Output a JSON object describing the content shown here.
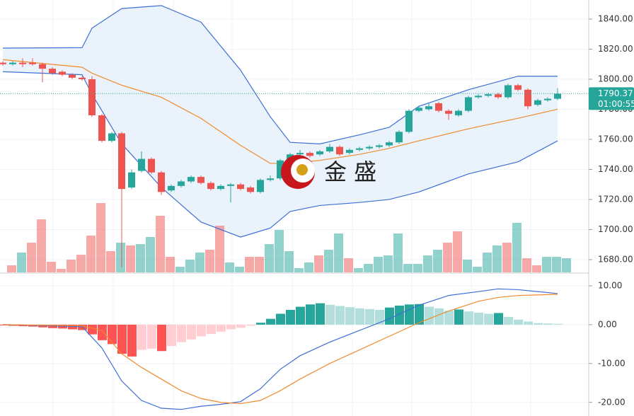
{
  "chart_data": {
    "type": "candlestick",
    "watermark": "金 盛",
    "ylim": [
      1671.5,
      1852.7
    ],
    "yticks": [
      {
        "value": 1840,
        "label": "1840.00"
      },
      {
        "value": 1820,
        "label": "1820.00"
      },
      {
        "value": 1800,
        "label": "1800.00"
      },
      {
        "value": 1780,
        "label": "1780.00"
      },
      {
        "value": 1760,
        "label": "1760.00"
      },
      {
        "value": 1740,
        "label": "1740.00"
      },
      {
        "value": 1720,
        "label": "1720.00"
      },
      {
        "value": 1700,
        "label": "1700.00"
      },
      {
        "value": 1680,
        "label": "1680.00"
      }
    ],
    "grid": true,
    "up_color": "#26a69a",
    "down_color": "#ef5350",
    "candles": {
      "open": [
        1811,
        1810,
        1811,
        1811,
        1810,
        1807,
        1805,
        1803,
        1801,
        1800,
        1776,
        1759,
        1764,
        1728,
        1739,
        1747,
        1738,
        1726,
        1729,
        1732,
        1735,
        1731,
        1727,
        1729,
        1730,
        1728,
        1725,
        1733,
        1734,
        1746,
        1750,
        1751,
        1750,
        1752,
        1755,
        1751,
        1753,
        1754,
        1755,
        1756,
        1758,
        1765,
        1779,
        1780,
        1784,
        1779,
        1776,
        1779,
        1788,
        1789,
        1790,
        1788,
        1796,
        1793,
        1783,
        1786,
        1787
      ],
      "close": [
        1810,
        1811,
        1810,
        1810,
        1807,
        1804,
        1803,
        1801,
        1800,
        1776,
        1759,
        1764,
        1727,
        1738,
        1747,
        1738,
        1725,
        1729,
        1732,
        1735,
        1731,
        1727,
        1729,
        1730,
        1727,
        1725,
        1733,
        1734,
        1746,
        1750,
        1751,
        1749,
        1752,
        1755,
        1750,
        1753,
        1754,
        1755,
        1756,
        1758,
        1765,
        1779,
        1781,
        1782,
        1779,
        1777,
        1779,
        1788,
        1789,
        1790,
        1788,
        1796,
        1793,
        1782,
        1786,
        1787,
        1790.37
      ],
      "high": [
        1812,
        1812,
        1814,
        1814,
        1811,
        1808,
        1806,
        1804,
        1802,
        1802,
        1777,
        1765,
        1765,
        1740,
        1752,
        1748,
        1739,
        1730,
        1733,
        1736,
        1736,
        1732,
        1730,
        1731,
        1731,
        1729,
        1734,
        1736,
        1747,
        1751,
        1753,
        1752,
        1753,
        1757,
        1756,
        1754,
        1755,
        1756,
        1757,
        1759,
        1766,
        1780,
        1782,
        1784,
        1785,
        1780,
        1780,
        1789,
        1790,
        1791,
        1791,
        1797,
        1797,
        1794,
        1787,
        1788,
        1794
      ],
      "low": [
        1809,
        1809,
        1808,
        1809,
        1798,
        1803,
        1802,
        1800,
        1799,
        1775,
        1758,
        1758,
        1675,
        1727,
        1738,
        1737,
        1723,
        1725,
        1728,
        1731,
        1730,
        1726,
        1726,
        1718,
        1726,
        1724,
        1724,
        1732,
        1733,
        1745,
        1749,
        1748,
        1749,
        1751,
        1749,
        1750,
        1752,
        1753,
        1754,
        1755,
        1757,
        1764,
        1778,
        1779,
        1778,
        1773,
        1775,
        1778,
        1787,
        1788,
        1787,
        1787,
        1792,
        1780,
        1782,
        1785,
        1786
      ]
    },
    "volume": {
      "opacity": 0.5,
      "values": [
        10,
        28,
        42,
        75,
        15,
        5,
        18,
        25,
        52,
        98,
        30,
        42,
        38,
        40,
        50,
        80,
        22,
        8,
        18,
        28,
        32,
        66,
        14,
        8,
        22,
        22,
        40,
        60,
        30,
        6,
        14,
        24,
        32,
        55,
        20,
        6,
        12,
        22,
        24,
        55,
        12,
        12,
        24,
        32,
        42,
        58,
        18,
        8,
        28,
        38,
        42,
        70,
        20,
        10,
        22,
        22,
        20
      ]
    },
    "bands": {
      "x": [
        0,
        8,
        9,
        12,
        16,
        20,
        24,
        27,
        29,
        32,
        36,
        39,
        42,
        47,
        52,
        56
      ],
      "fill": "#eaf3fb",
      "upper": {
        "color": "#3d6fd6",
        "values": [
          1820.7,
          1821,
          1834,
          1847,
          1849,
          1838,
          1806,
          1775,
          1758,
          1757,
          1763,
          1768,
          1782,
          1793,
          1802,
          1802
        ]
      },
      "middle": {
        "color": "#f08a2c",
        "values": [
          1813,
          1808,
          1804,
          1796,
          1788,
          1774,
          1756,
          1744,
          1744,
          1746,
          1750,
          1754,
          1759,
          1767,
          1774,
          1780
        ]
      },
      "lower": {
        "color": "#3d6fd6",
        "values": [
          1805,
          1803,
          1790,
          1757,
          1728,
          1705,
          1695,
          1701,
          1712,
          1716,
          1718,
          1720,
          1725,
          1737,
          1745,
          1759
        ]
      }
    },
    "last_price": 1790.37,
    "countdown": "01:00:55",
    "macd": {
      "ylim": [
        -23.5,
        12.9
      ],
      "yticks": [
        {
          "value": 10,
          "label": "10.00"
        },
        {
          "value": 0,
          "label": "0.00"
        },
        {
          "value": -10,
          "label": "-10.00"
        },
        {
          "value": -20,
          "label": "-20.00"
        }
      ],
      "histogram": [
        -0.2,
        -0.3,
        -0.4,
        -0.5,
        -0.7,
        -0.9,
        -1.0,
        -1.2,
        -1.4,
        -2.5,
        -4,
        -5,
        -7.5,
        -8.2,
        -6.5,
        -6.2,
        -6.8,
        -5.5,
        -4.5,
        -3.8,
        -3,
        -2.4,
        -1.8,
        -1.2,
        -0.8,
        -0.3,
        0.5,
        1.5,
        2.8,
        3.8,
        4.6,
        5.2,
        5.5,
        5.1,
        4.8,
        4.5,
        4.2,
        4,
        3.8,
        4.4,
        4.9,
        5.2,
        5.3,
        4.6,
        4.2,
        3.6,
        3.9,
        3.4,
        3.1,
        2.8,
        3.0,
        2.0,
        1.3,
        0.8,
        0.4,
        0.3,
        0.2
      ],
      "colors": {
        "up_strong": "#26a69a",
        "up_weak": "#b2dfdb",
        "down_strong": "#ff5252",
        "down_weak": "#ffcdd2"
      },
      "x": [
        0,
        8,
        10,
        12,
        14,
        16,
        18,
        20,
        22,
        24,
        26,
        28,
        30,
        33,
        36,
        39,
        42,
        45,
        48,
        50,
        52,
        56
      ],
      "macd": {
        "color": "#3d6fd6",
        "values": [
          0,
          -0.5,
          -6,
          -14.5,
          -19.5,
          -21.5,
          -21.8,
          -21,
          -20.5,
          -19.8,
          -16.5,
          -11.5,
          -8,
          -4.5,
          -1.5,
          1.5,
          5,
          7.5,
          8.5,
          9.2,
          9.0,
          8.0
        ]
      },
      "signal": {
        "color": "#f08a2c",
        "values": [
          0,
          -0.3,
          -1.5,
          -7.5,
          -11,
          -14,
          -17,
          -19,
          -20,
          -20.3,
          -19.5,
          -17,
          -14,
          -10,
          -6.5,
          -3,
          0.5,
          3.5,
          6,
          7,
          7.5,
          7.8
        ]
      }
    }
  }
}
